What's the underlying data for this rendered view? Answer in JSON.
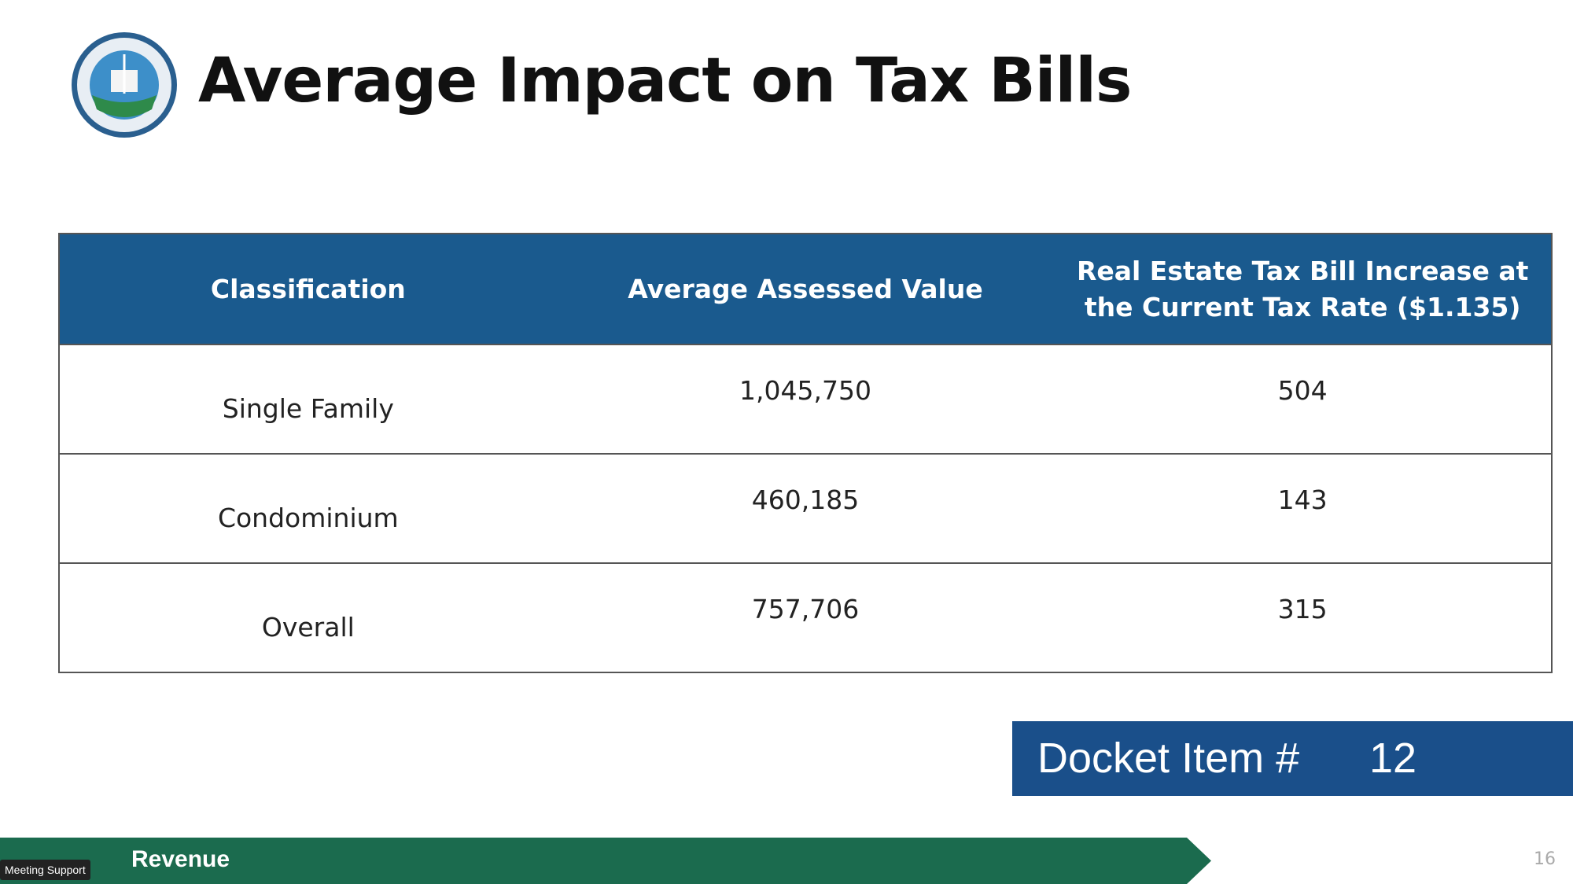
{
  "header": {
    "title": "Average Impact on Tax Bills"
  },
  "table": {
    "columns": [
      "Classification",
      "Average Assessed Value",
      "Real Estate Tax Bill Increase at the Current Tax Rate ($1.135)"
    ],
    "rows": [
      [
        "Single Family",
        "1,045,750",
        "504"
      ],
      [
        "Condominium",
        "460,185",
        "143"
      ],
      [
        "Overall",
        "757,706",
        "315"
      ]
    ]
  },
  "docket": {
    "label": "Docket Item #",
    "number": "12"
  },
  "footer": {
    "section": "Revenue",
    "page": "16"
  },
  "overlay": {
    "label": "Meeting Support"
  }
}
